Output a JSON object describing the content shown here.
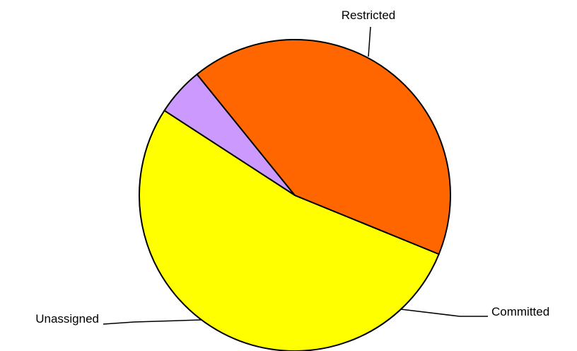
{
  "chart_data": {
    "type": "pie",
    "slices": [
      {
        "label": "Restricted",
        "value": 53,
        "color": "#ffff00"
      },
      {
        "label": "Committed",
        "value": 5,
        "color": "#cc99ff"
      },
      {
        "label": "Unassigned",
        "value": 42,
        "color": "#ff6600"
      }
    ],
    "title": "",
    "legend": "none",
    "start_angle_deg": 112.2
  }
}
